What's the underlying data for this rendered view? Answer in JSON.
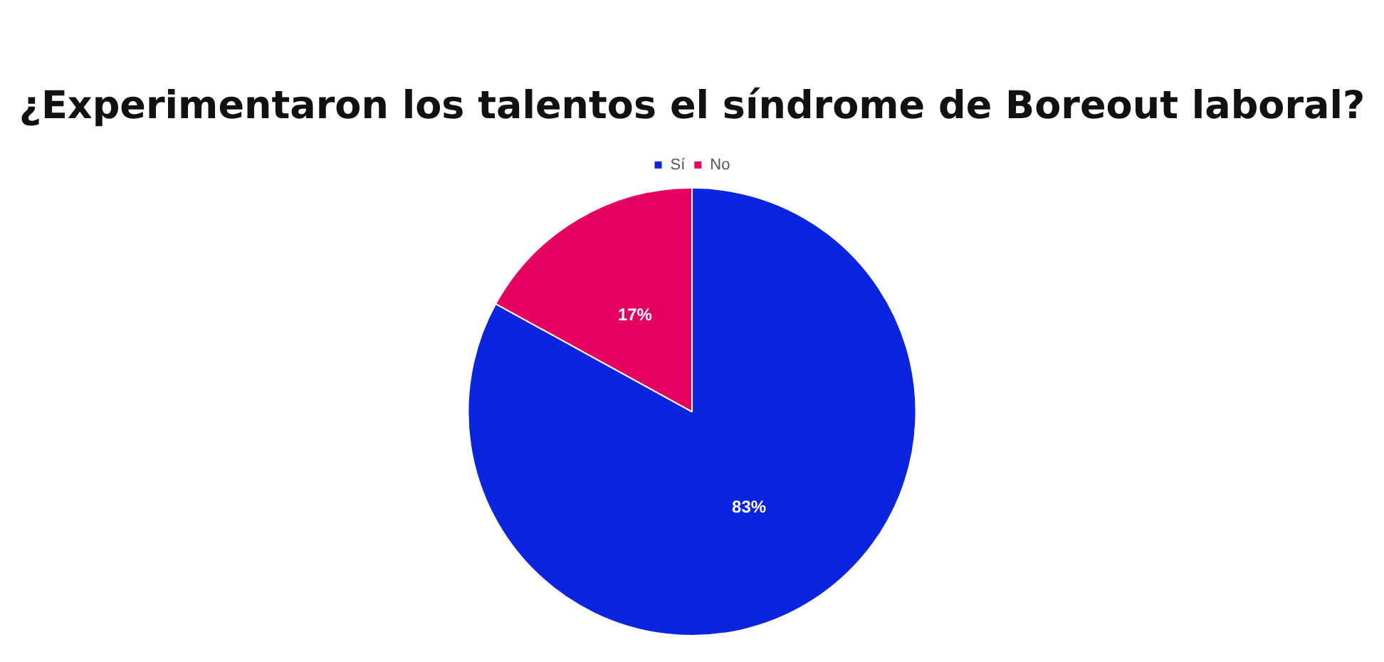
{
  "chart_data": {
    "type": "pie",
    "title": "¿Experimentaron los talentos el síndrome de Boreout laboral?",
    "categories": [
      "Sí",
      "No"
    ],
    "values": [
      83,
      17
    ],
    "colors": [
      "#0a24e0",
      "#e6005f"
    ],
    "value_labels": [
      "83%",
      "17%"
    ],
    "legend": "top"
  }
}
